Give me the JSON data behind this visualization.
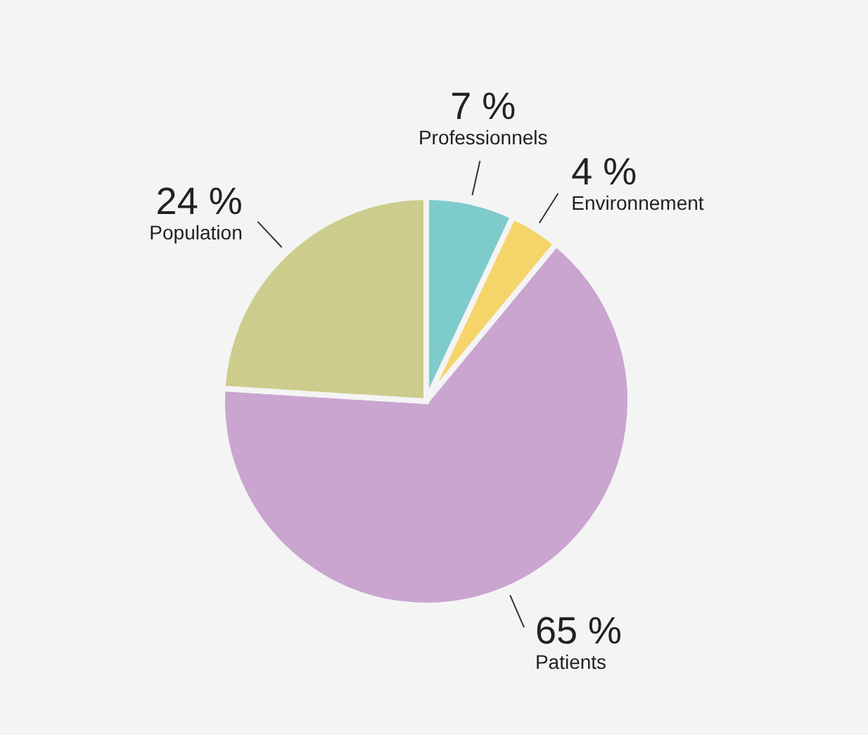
{
  "chart_data": {
    "type": "pie",
    "categories": [
      "Professionnels",
      "Environnement",
      "Patients",
      "Population"
    ],
    "values": [
      7,
      4,
      65,
      24
    ],
    "value_labels": [
      "7 %",
      "4 %",
      "65 %",
      "24 %"
    ],
    "colors": [
      "#7ecbcb",
      "#f5d46a",
      "#c9a5d0",
      "#cccd8c"
    ]
  }
}
